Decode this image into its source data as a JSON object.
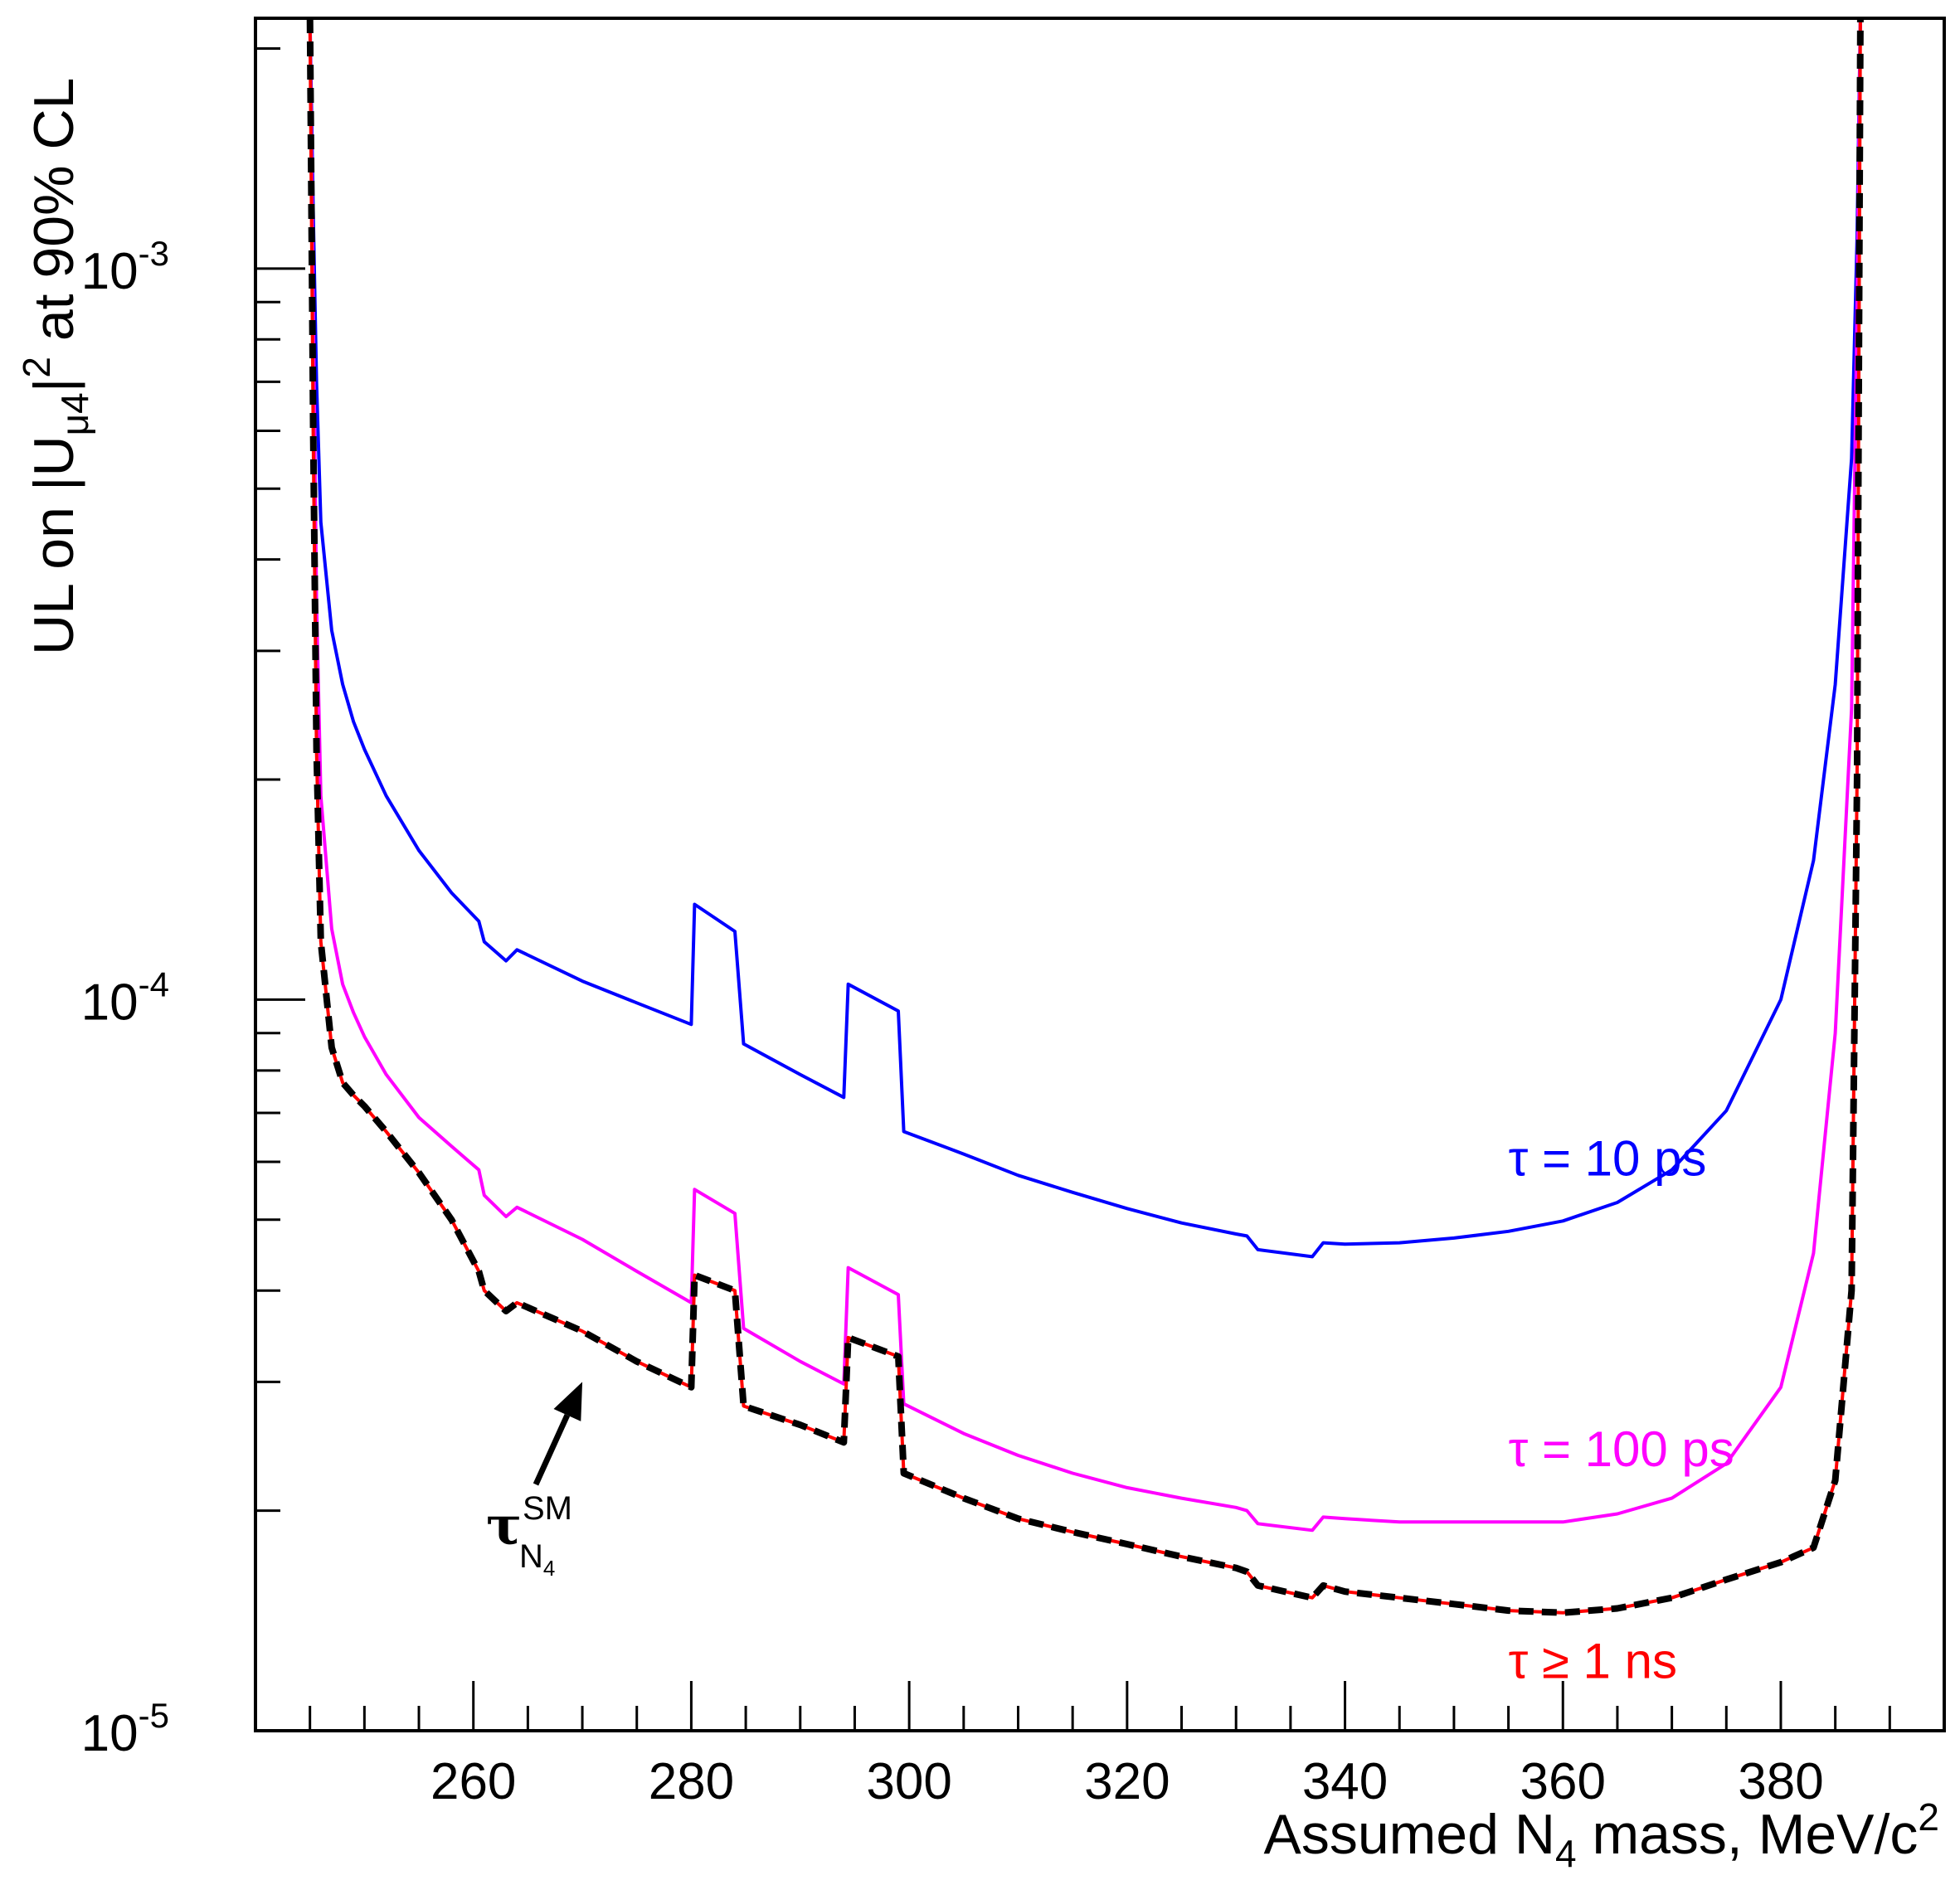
{
  "chart_data": {
    "type": "line",
    "title": "",
    "xlabel_parts": {
      "pre": "Assumed N",
      "sub": "4",
      "post": " mass, MeV/c",
      "sup": "2"
    },
    "ylabel_parts": {
      "pre": "UL on |U",
      "sub": "μ4",
      "post": "|",
      "sup": "2",
      "tail": " at 90% CL"
    },
    "xlim": [
      240,
      395
    ],
    "ylim": [
      1e-05,
      0.0022
    ],
    "yscale": "log",
    "x_ticks": [
      260,
      280,
      300,
      320,
      340,
      360,
      380
    ],
    "y_ticks": [
      {
        "value": 0.001,
        "base": "10",
        "exp": "-3"
      },
      {
        "value": 0.0001,
        "base": "10",
        "exp": "-4"
      },
      {
        "value": 1e-05,
        "base": "10",
        "exp": "-5"
      }
    ],
    "grid": false,
    "annotation": {
      "text": "τ",
      "sup": "SM",
      "sub": "N",
      "subsub": "4",
      "arrow_to": [
        270,
        3e-05
      ]
    },
    "series": [
      {
        "name": "τ = 10 ps",
        "color": "#0000ff",
        "label_x": 355,
        "label_y": 5.75e-05,
        "x": [
          245.0,
          245.3,
          245.6,
          246,
          247,
          248,
          249,
          250,
          252,
          255,
          258,
          260.5,
          261,
          263,
          264,
          270,
          275,
          280,
          280.3,
          284,
          284.8,
          290,
          294,
          294.4,
          299,
          299.5,
          305,
          310,
          315,
          320,
          325,
          330,
          331,
          332,
          337,
          338,
          340,
          345,
          350,
          355,
          360,
          365,
          370,
          375,
          380,
          383,
          385,
          386.5,
          387,
          387.3
        ],
        "y": [
          0.0022,
          0.0012,
          0.0007,
          0.00045,
          0.00032,
          0.00027,
          0.00024,
          0.00022,
          0.00019,
          0.00016,
          0.00014,
          0.000128,
          0.00012,
          0.000113,
          0.000117,
          0.000106,
          9.9e-05,
          9.25e-05,
          0.000135,
          0.000124,
          8.7e-05,
          7.9e-05,
          7.35e-05,
          0.000105,
          9.65e-05,
          6.6e-05,
          6.15e-05,
          5.75e-05,
          5.45e-05,
          5.18e-05,
          4.95e-05,
          4.78e-05,
          4.75e-05,
          4.55e-05,
          4.45e-05,
          4.65e-05,
          4.63e-05,
          4.65e-05,
          4.72e-05,
          4.82e-05,
          4.98e-05,
          5.28e-05,
          5.85e-05,
          7.05e-05,
          0.0001,
          0.000155,
          0.00027,
          0.00055,
          0.0011,
          0.0022
        ]
      },
      {
        "name": "τ = 100 ps",
        "color": "#ff00ff",
        "label_x": 355,
        "label_y": 2.3e-05,
        "x": [
          245.0,
          245.3,
          245.6,
          246,
          247,
          248,
          249,
          250,
          252,
          255,
          258,
          260.5,
          261,
          263,
          264,
          270,
          275,
          280,
          280.3,
          284,
          284.8,
          290,
          294,
          294.4,
          299,
          299.5,
          305,
          310,
          315,
          320,
          325,
          330,
          331,
          332,
          337,
          338,
          340,
          345,
          350,
          355,
          360,
          365,
          370,
          375,
          380,
          383,
          385,
          386.5,
          387,
          387.3
        ],
        "y": [
          0.0022,
          0.0009,
          0.00035,
          0.00019,
          0.000125,
          0.000105,
          9.6e-05,
          8.9e-05,
          7.9e-05,
          6.9e-05,
          6.3e-05,
          5.85e-05,
          5.4e-05,
          5.05e-05,
          5.2e-05,
          4.7e-05,
          4.25e-05,
          3.85e-05,
          5.5e-05,
          5.1e-05,
          3.55e-05,
          3.2e-05,
          2.98e-05,
          4.3e-05,
          3.95e-05,
          2.8e-05,
          2.55e-05,
          2.38e-05,
          2.25e-05,
          2.15e-05,
          2.08e-05,
          2.02e-05,
          2e-05,
          1.92e-05,
          1.88e-05,
          1.96e-05,
          1.95e-05,
          1.93e-05,
          1.93e-05,
          1.93e-05,
          1.93e-05,
          1.98e-05,
          2.08e-05,
          2.32e-05,
          2.95e-05,
          4.5e-05,
          9e-05,
          0.00025,
          0.0009,
          0.0022
        ]
      },
      {
        "name": "τ ≥ 1 ns",
        "color": "#ff0000",
        "label_x": 355,
        "label_y": 1.18e-05,
        "x": [
          245.0,
          245.3,
          245.6,
          246,
          247,
          248,
          249,
          250,
          252,
          255,
          258,
          260.5,
          261,
          263,
          264,
          270,
          275,
          280,
          280.3,
          284,
          284.8,
          290,
          294,
          294.4,
          299,
          299.5,
          305,
          310,
          315,
          320,
          325,
          330,
          331,
          332,
          337,
          338,
          340,
          345,
          350,
          355,
          360,
          365,
          370,
          375,
          380,
          383,
          385,
          386.5,
          387,
          387.3
        ],
        "y": [
          0.0022,
          0.0006,
          0.00022,
          0.00012,
          8.6e-05,
          7.7e-05,
          7.4e-05,
          7.15e-05,
          6.6e-05,
          5.8e-05,
          5e-05,
          4.25e-05,
          4e-05,
          3.75e-05,
          3.85e-05,
          3.52e-05,
          3.2e-05,
          2.95e-05,
          4.2e-05,
          4e-05,
          2.78e-05,
          2.62e-05,
          2.48e-05,
          3.45e-05,
          3.25e-05,
          2.25e-05,
          2.08e-05,
          1.95e-05,
          1.87e-05,
          1.8e-05,
          1.73e-05,
          1.67e-05,
          1.65e-05,
          1.58e-05,
          1.52e-05,
          1.58e-05,
          1.55e-05,
          1.52e-05,
          1.49e-05,
          1.46e-05,
          1.45e-05,
          1.47e-05,
          1.52e-05,
          1.61e-05,
          1.7e-05,
          1.78e-05,
          2.2e-05,
          4e-05,
          0.0002,
          0.0022
        ]
      },
      {
        "name": "",
        "color": "#000000",
        "dashed": true,
        "x": [
          245.0,
          245.3,
          245.6,
          246,
          247,
          248,
          249,
          250,
          252,
          255,
          258,
          260.5,
          261,
          263,
          264,
          270,
          275,
          280,
          280.3,
          284,
          284.8,
          290,
          294,
          294.4,
          299,
          299.5,
          305,
          310,
          315,
          320,
          325,
          330,
          331,
          332,
          337,
          338,
          340,
          345,
          350,
          355,
          360,
          365,
          370,
          375,
          380,
          383,
          385,
          386.5,
          387,
          387.3
        ],
        "y": [
          0.0022,
          0.0006,
          0.00022,
          0.00012,
          8.6e-05,
          7.7e-05,
          7.4e-05,
          7.15e-05,
          6.6e-05,
          5.8e-05,
          5e-05,
          4.25e-05,
          4e-05,
          3.75e-05,
          3.85e-05,
          3.52e-05,
          3.2e-05,
          2.95e-05,
          4.2e-05,
          4e-05,
          2.78e-05,
          2.62e-05,
          2.48e-05,
          3.45e-05,
          3.25e-05,
          2.25e-05,
          2.08e-05,
          1.95e-05,
          1.87e-05,
          1.8e-05,
          1.73e-05,
          1.67e-05,
          1.65e-05,
          1.58e-05,
          1.52e-05,
          1.58e-05,
          1.55e-05,
          1.52e-05,
          1.49e-05,
          1.46e-05,
          1.45e-05,
          1.47e-05,
          1.52e-05,
          1.61e-05,
          1.7e-05,
          1.78e-05,
          2.2e-05,
          4e-05,
          0.0002,
          0.0022
        ]
      }
    ]
  }
}
